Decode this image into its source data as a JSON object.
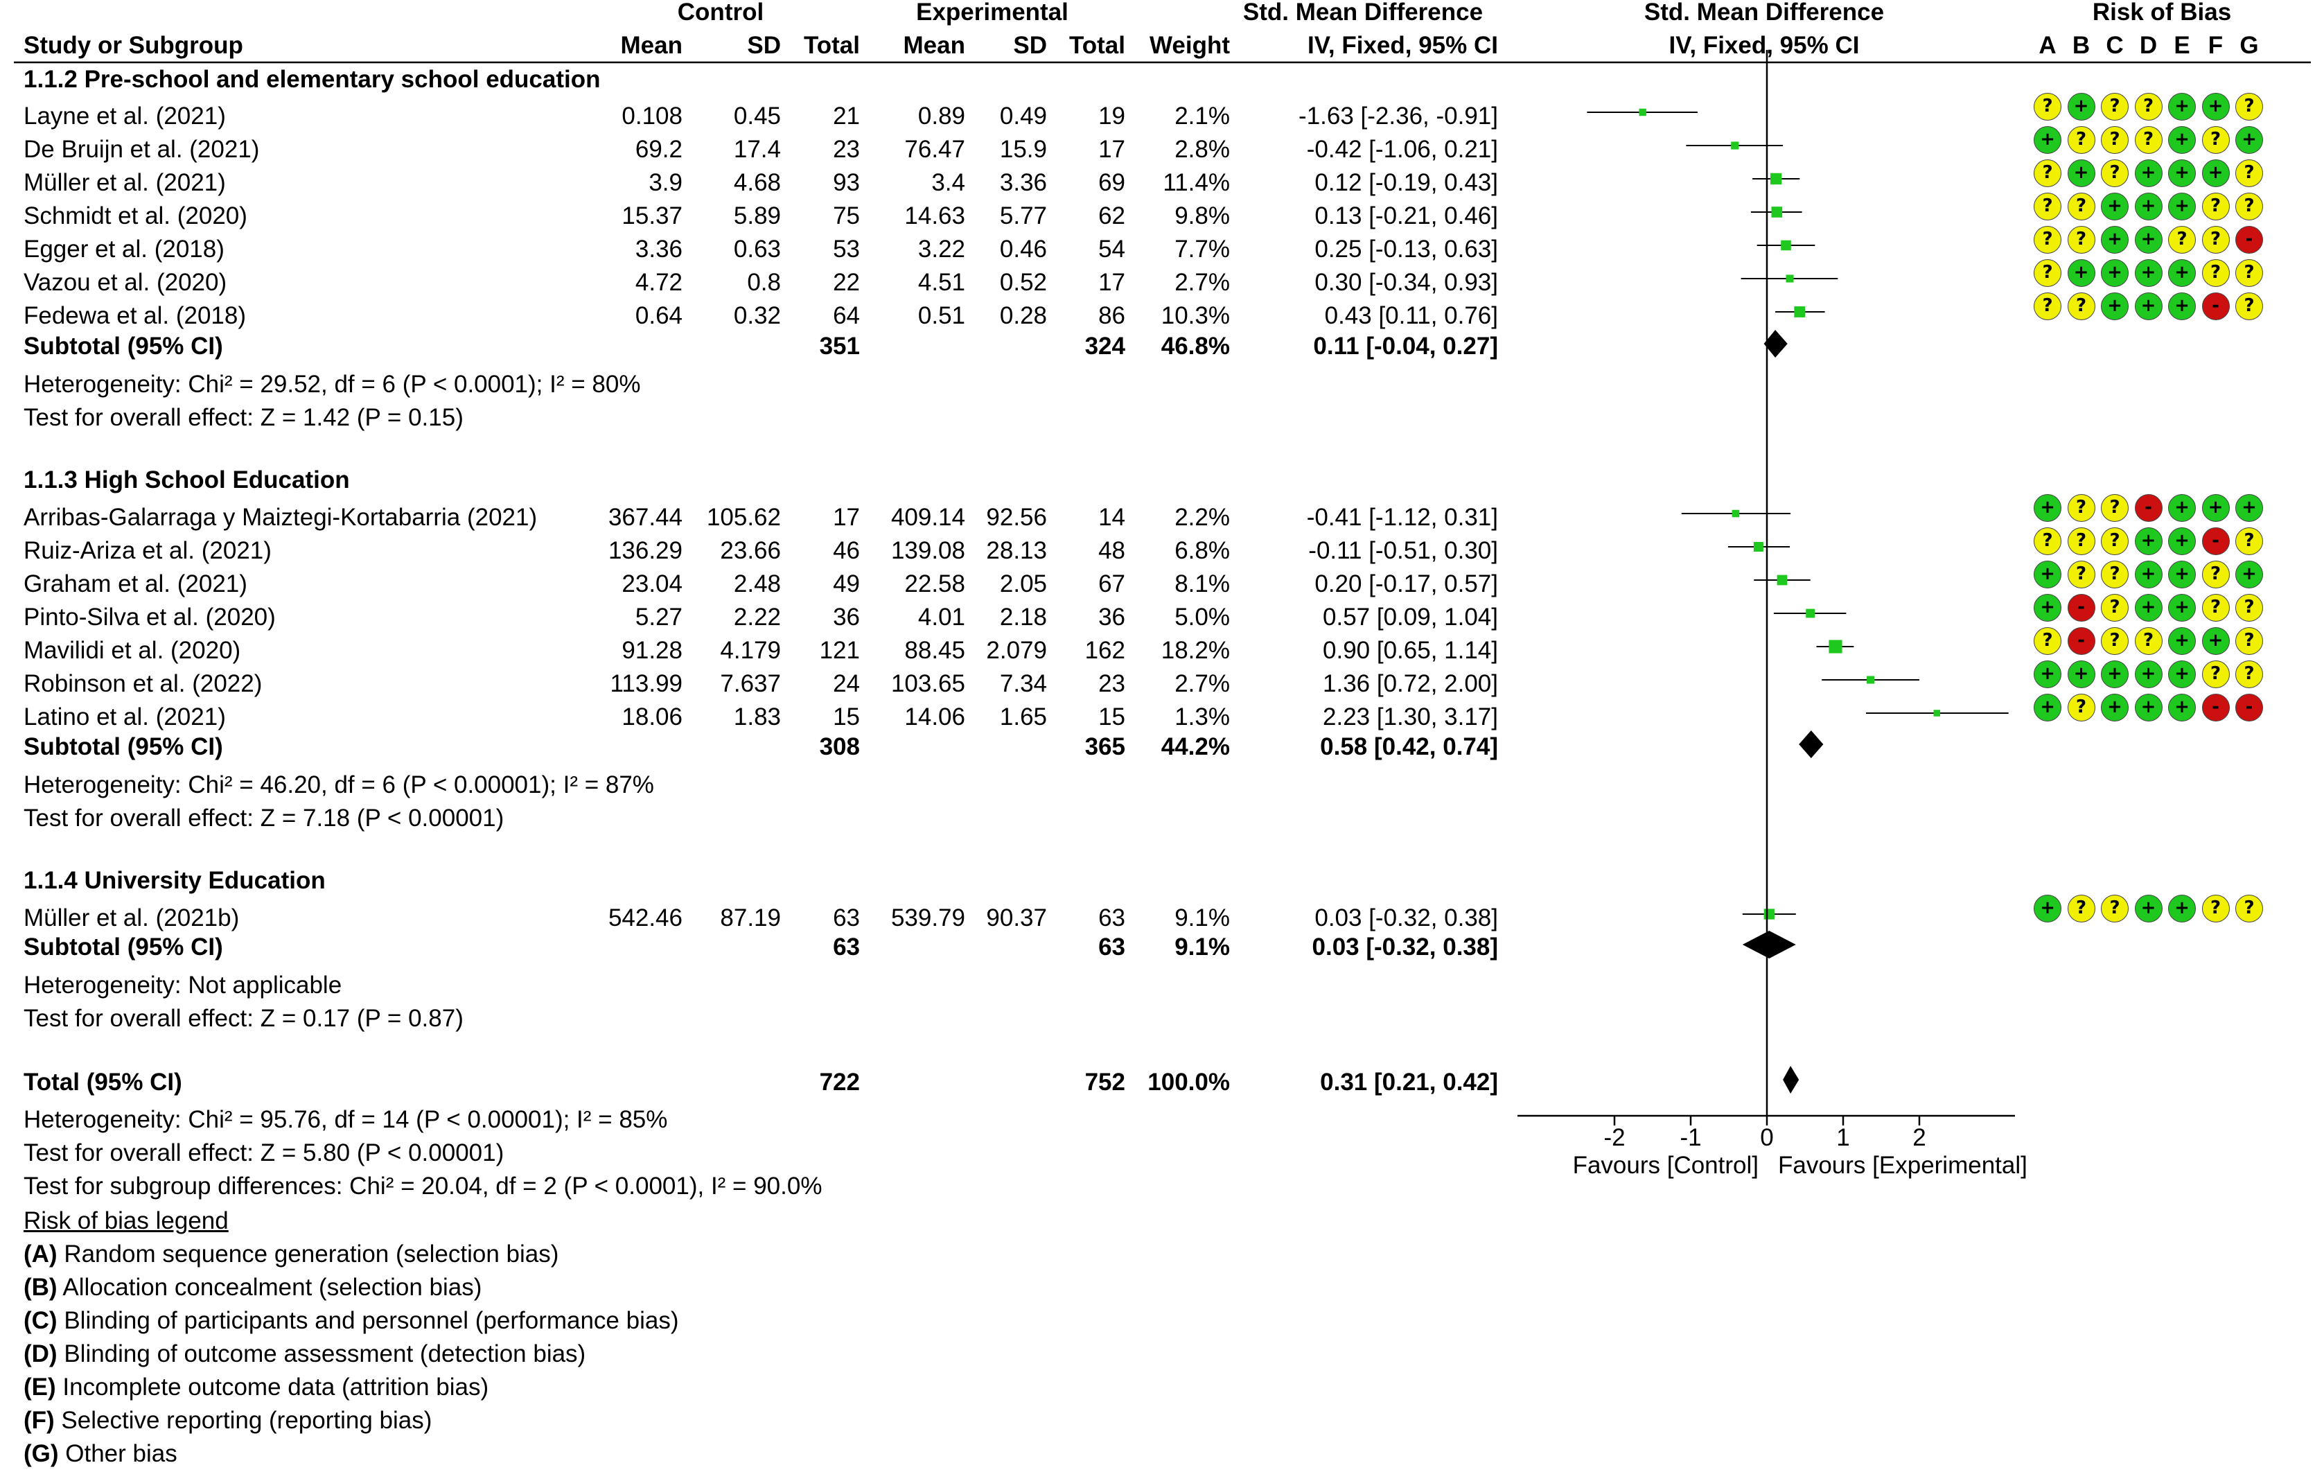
{
  "header": {
    "control": "Control",
    "experimental": "Experimental",
    "smd_top": "Std. Mean Difference",
    "smd_plot_top": "Std. Mean Difference",
    "risk_of_bias": "Risk of Bias",
    "study_col": "Study or Subgroup",
    "mean": "Mean",
    "sd": "SD",
    "total": "Total",
    "weight": "Weight",
    "method": "IV, Fixed, 95% CI",
    "method_plot": "IV, Fixed, 95% CI",
    "bias_letters": [
      "A",
      "B",
      "C",
      "D",
      "E",
      "F",
      "G"
    ]
  },
  "chart_data": {
    "type": "forest",
    "xlim": [
      -2.6,
      3.2
    ],
    "ticks": [
      -2,
      -1,
      0,
      1,
      2
    ],
    "tick_labels": [
      "-2",
      "-1",
      "0",
      "1",
      "2"
    ],
    "favours_left": "Favours [Control]",
    "favours_right": "Favours [Experimental]",
    "groups": [
      {
        "title": "1.1.2 Pre-school and elementary school education",
        "studies": [
          {
            "name": "Layne et al. (2021)",
            "c_mean": "0.108",
            "c_sd": "0.45",
            "c_n": "21",
            "e_mean": "0.89",
            "e_sd": "0.49",
            "e_n": "19",
            "weight": "2.1%",
            "ci_text": "-1.63 [-2.36, -0.91]",
            "est": -1.63,
            "lo": -2.36,
            "hi": -0.91,
            "w": 2.1,
            "bias": [
              "?",
              "+",
              "?",
              "?",
              "+",
              "+",
              "?"
            ]
          },
          {
            "name": "De Bruijn et al. (2021)",
            "c_mean": "69.2",
            "c_sd": "17.4",
            "c_n": "23",
            "e_mean": "76.47",
            "e_sd": "15.9",
            "e_n": "17",
            "weight": "2.8%",
            "ci_text": "-0.42 [-1.06, 0.21]",
            "est": -0.42,
            "lo": -1.06,
            "hi": 0.21,
            "w": 2.8,
            "bias": [
              "+",
              "?",
              "?",
              "?",
              "+",
              "?",
              "+"
            ]
          },
          {
            "name": "Müller et al. (2021)",
            "c_mean": "3.9",
            "c_sd": "4.68",
            "c_n": "93",
            "e_mean": "3.4",
            "e_sd": "3.36",
            "e_n": "69",
            "weight": "11.4%",
            "ci_text": "0.12 [-0.19, 0.43]",
            "est": 0.12,
            "lo": -0.19,
            "hi": 0.43,
            "w": 11.4,
            "bias": [
              "?",
              "+",
              "?",
              "+",
              "+",
              "+",
              "?"
            ]
          },
          {
            "name": "Schmidt et al. (2020)",
            "c_mean": "15.37",
            "c_sd": "5.89",
            "c_n": "75",
            "e_mean": "14.63",
            "e_sd": "5.77",
            "e_n": "62",
            "weight": "9.8%",
            "ci_text": "0.13 [-0.21, 0.46]",
            "est": 0.13,
            "lo": -0.21,
            "hi": 0.46,
            "w": 9.8,
            "bias": [
              "?",
              "?",
              "+",
              "+",
              "+",
              "?",
              "?"
            ]
          },
          {
            "name": "Egger et al. (2018)",
            "c_mean": "3.36",
            "c_sd": "0.63",
            "c_n": "53",
            "e_mean": "3.22",
            "e_sd": "0.46",
            "e_n": "54",
            "weight": "7.7%",
            "ci_text": "0.25 [-0.13, 0.63]",
            "est": 0.25,
            "lo": -0.13,
            "hi": 0.63,
            "w": 7.7,
            "bias": [
              "?",
              "?",
              "+",
              "+",
              "?",
              "?",
              "-"
            ]
          },
          {
            "name": "Vazou et al. (2020)",
            "c_mean": "4.72",
            "c_sd": "0.8",
            "c_n": "22",
            "e_mean": "4.51",
            "e_sd": "0.52",
            "e_n": "17",
            "weight": "2.7%",
            "ci_text": "0.30 [-0.34, 0.93]",
            "est": 0.3,
            "lo": -0.34,
            "hi": 0.93,
            "w": 2.7,
            "bias": [
              "?",
              "+",
              "+",
              "+",
              "+",
              "?",
              "?"
            ]
          },
          {
            "name": "Fedewa et al. (2018)",
            "c_mean": "0.64",
            "c_sd": "0.32",
            "c_n": "64",
            "e_mean": "0.51",
            "e_sd": "0.28",
            "e_n": "86",
            "weight": "10.3%",
            "ci_text": "0.43 [0.11, 0.76]",
            "est": 0.43,
            "lo": 0.11,
            "hi": 0.76,
            "w": 10.3,
            "bias": [
              "?",
              "?",
              "+",
              "+",
              "+",
              "-",
              "?"
            ]
          }
        ],
        "subtotal": {
          "label": "Subtotal (95% CI)",
          "c_n": "351",
          "e_n": "324",
          "weight": "46.8%",
          "ci_text": "0.11 [-0.04, 0.27]",
          "est": 0.11,
          "lo": -0.04,
          "hi": 0.27
        },
        "heterogeneity": "Heterogeneity: Chi² = 29.52, df = 6 (P < 0.0001); I² = 80%",
        "overall": "Test for overall effect: Z = 1.42 (P = 0.15)"
      },
      {
        "title": "1.1.3 High School Education",
        "studies": [
          {
            "name": "Arribas-Galarraga y Maiztegi-Kortabarria (2021)",
            "c_mean": "367.44",
            "c_sd": "105.62",
            "c_n": "17",
            "e_mean": "409.14",
            "e_sd": "92.56",
            "e_n": "14",
            "weight": "2.2%",
            "ci_text": "-0.41 [-1.12, 0.31]",
            "est": -0.41,
            "lo": -1.12,
            "hi": 0.31,
            "w": 2.2,
            "bias": [
              "+",
              "?",
              "?",
              "-",
              "+",
              "+",
              "+"
            ]
          },
          {
            "name": "Ruiz-Ariza et al. (2021)",
            "c_mean": "136.29",
            "c_sd": "23.66",
            "c_n": "46",
            "e_mean": "139.08",
            "e_sd": "28.13",
            "e_n": "48",
            "weight": "6.8%",
            "ci_text": "-0.11 [-0.51, 0.30]",
            "est": -0.11,
            "lo": -0.51,
            "hi": 0.3,
            "w": 6.8,
            "bias": [
              "?",
              "?",
              "?",
              "+",
              "+",
              "-",
              "?"
            ]
          },
          {
            "name": "Graham et al. (2021)",
            "c_mean": "23.04",
            "c_sd": "2.48",
            "c_n": "49",
            "e_mean": "22.58",
            "e_sd": "2.05",
            "e_n": "67",
            "weight": "8.1%",
            "ci_text": "0.20 [-0.17, 0.57]",
            "est": 0.2,
            "lo": -0.17,
            "hi": 0.57,
            "w": 8.1,
            "bias": [
              "+",
              "?",
              "?",
              "+",
              "+",
              "?",
              "+"
            ]
          },
          {
            "name": "Pinto-Silva et al. (2020)",
            "c_mean": "5.27",
            "c_sd": "2.22",
            "c_n": "36",
            "e_mean": "4.01",
            "e_sd": "2.18",
            "e_n": "36",
            "weight": "5.0%",
            "ci_text": "0.57 [0.09, 1.04]",
            "est": 0.57,
            "lo": 0.09,
            "hi": 1.04,
            "w": 5.0,
            "bias": [
              "+",
              "-",
              "?",
              "+",
              "+",
              "?",
              "?"
            ]
          },
          {
            "name": "Mavilidi et al. (2020)",
            "c_mean": "91.28",
            "c_sd": "4.179",
            "c_n": "121",
            "e_mean": "88.45",
            "e_sd": "2.079",
            "e_n": "162",
            "weight": "18.2%",
            "ci_text": "0.90 [0.65, 1.14]",
            "est": 0.9,
            "lo": 0.65,
            "hi": 1.14,
            "w": 18.2,
            "bias": [
              "?",
              "-",
              "?",
              "?",
              "+",
              "+",
              "?"
            ]
          },
          {
            "name": "Robinson et al. (2022)",
            "c_mean": "113.99",
            "c_sd": "7.637",
            "c_n": "24",
            "e_mean": "103.65",
            "e_sd": "7.34",
            "e_n": "23",
            "weight": "2.7%",
            "ci_text": "1.36 [0.72, 2.00]",
            "est": 1.36,
            "lo": 0.72,
            "hi": 2.0,
            "w": 2.7,
            "bias": [
              "+",
              "+",
              "+",
              "+",
              "+",
              "?",
              "?"
            ]
          },
          {
            "name": "Latino et al. (2021)",
            "c_mean": "18.06",
            "c_sd": "1.83",
            "c_n": "15",
            "e_mean": "14.06",
            "e_sd": "1.65",
            "e_n": "15",
            "weight": "1.3%",
            "ci_text": "2.23 [1.30, 3.17]",
            "est": 2.23,
            "lo": 1.3,
            "hi": 3.17,
            "w": 1.3,
            "bias": [
              "+",
              "?",
              "+",
              "+",
              "+",
              "-",
              "-"
            ]
          }
        ],
        "subtotal": {
          "label": "Subtotal (95% CI)",
          "c_n": "308",
          "e_n": "365",
          "weight": "44.2%",
          "ci_text": "0.58 [0.42, 0.74]",
          "est": 0.58,
          "lo": 0.42,
          "hi": 0.74
        },
        "heterogeneity": "Heterogeneity: Chi² = 46.20, df = 6 (P < 0.00001); I² = 87%",
        "overall": "Test for overall effect: Z = 7.18 (P < 0.00001)"
      },
      {
        "title": "1.1.4 University Education",
        "studies": [
          {
            "name": "Müller et al. (2021b)",
            "c_mean": "542.46",
            "c_sd": "87.19",
            "c_n": "63",
            "e_mean": "539.79",
            "e_sd": "90.37",
            "e_n": "63",
            "weight": "9.1%",
            "ci_text": "0.03 [-0.32, 0.38]",
            "est": 0.03,
            "lo": -0.32,
            "hi": 0.38,
            "w": 9.1,
            "bias": [
              "+",
              "?",
              "?",
              "+",
              "+",
              "?",
              "?"
            ]
          }
        ],
        "subtotal": {
          "label": "Subtotal (95% CI)",
          "c_n": "63",
          "e_n": "63",
          "weight": "9.1%",
          "ci_text": "0.03 [-0.32, 0.38]",
          "est": 0.03,
          "lo": -0.32,
          "hi": 0.38
        },
        "heterogeneity": "Heterogeneity: Not applicable",
        "overall": "Test for overall effect: Z = 0.17 (P = 0.87)"
      }
    ],
    "total": {
      "label": "Total (95% CI)",
      "c_n": "722",
      "e_n": "752",
      "weight": "100.0%",
      "ci_text": "0.31 [0.21, 0.42]",
      "est": 0.31,
      "lo": 0.21,
      "hi": 0.42
    },
    "total_heterogeneity": "Heterogeneity: Chi² = 95.76, df = 14 (P < 0.00001); I² = 85%",
    "total_overall": "Test for overall effect: Z = 5.80 (P < 0.00001)",
    "subgroup_diff": "Test for subgroup differences: Chi² = 20.04, df = 2 (P < 0.0001), I² = 90.0%"
  },
  "legend": {
    "title": "Risk of bias legend",
    "items": [
      {
        "letter": "(A)",
        "text": " Random sequence generation (selection bias)"
      },
      {
        "letter": "(B)",
        "text": " Allocation concealment (selection bias)"
      },
      {
        "letter": "(C)",
        "text": " Blinding of participants and personnel (performance bias)"
      },
      {
        "letter": "(D)",
        "text": " Blinding of outcome assessment (detection bias)"
      },
      {
        "letter": "(E)",
        "text": " Incomplete outcome data (attrition bias)"
      },
      {
        "letter": "(F)",
        "text": " Selective reporting (reporting bias)"
      },
      {
        "letter": "(G)",
        "text": " Other bias"
      }
    ]
  },
  "colors": {
    "low_risk": "#1ec81e",
    "unclear_risk": "#f0f000",
    "high_risk": "#cc1010",
    "study_marker": "#1ec81e",
    "diamond": "#000000"
  }
}
